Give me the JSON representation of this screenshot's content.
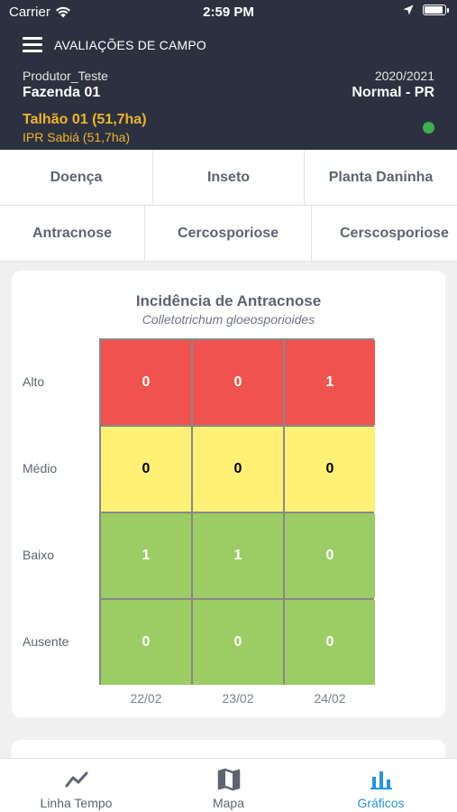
{
  "status_bar": {
    "carrier": "Carrier",
    "time": "2:59 PM",
    "wifi_icon": "wifi-icon",
    "location_icon": "location-arrow-icon",
    "battery_level": 1.0
  },
  "header": {
    "title": "AVALIAÇÕES DE CAMPO",
    "producer": "Produtor_Teste",
    "farm": "Fazenda 01",
    "season": "2020/2021",
    "region": "Normal - PR",
    "plot": "Talhão 01 (51,7ha)",
    "variety": "IPR Sabiá (51,7ha)",
    "status_color": "#3fae4f"
  },
  "category_tabs": [
    {
      "label": "Doença",
      "active": true
    },
    {
      "label": "Inseto",
      "active": false
    },
    {
      "label": "Planta Daninha",
      "active": false
    }
  ],
  "disease_tabs": [
    {
      "label": "Antracnose",
      "active": true
    },
    {
      "label": "Cercosporiose",
      "active": false
    },
    {
      "label": "Cerscosporiose",
      "active": false
    }
  ],
  "chart_data": {
    "type": "heatmap",
    "title": "Incidência de Antracnose",
    "subtitle": "Colletotrichum gloeosporioides",
    "columns": [
      "22/02",
      "23/02",
      "24/02"
    ],
    "rows": [
      {
        "label": "Alto",
        "color": "#ef5350",
        "text_color": "#ffffff",
        "values": [
          0,
          0,
          1
        ]
      },
      {
        "label": "Médio",
        "color": "#fff176",
        "text_color": "#000000",
        "values": [
          0,
          0,
          0
        ]
      },
      {
        "label": "Baixo",
        "color": "#9ccc65",
        "text_color": "#ffffff",
        "values": [
          1,
          1,
          0
        ]
      },
      {
        "label": "Ausente",
        "color": "#9ccc65",
        "text_color": "#ffffff",
        "values": [
          0,
          0,
          0
        ]
      }
    ]
  },
  "bottom_nav": [
    {
      "label": "Linha Tempo",
      "icon": "line-chart-icon",
      "active": false
    },
    {
      "label": "Mapa",
      "icon": "map-icon",
      "active": false
    },
    {
      "label": "Gráficos",
      "icon": "bar-chart-icon",
      "active": true
    }
  ],
  "colors": {
    "header_bg": "#2c3140",
    "accent": "#2b93d6",
    "highlight": "#f0b429"
  }
}
